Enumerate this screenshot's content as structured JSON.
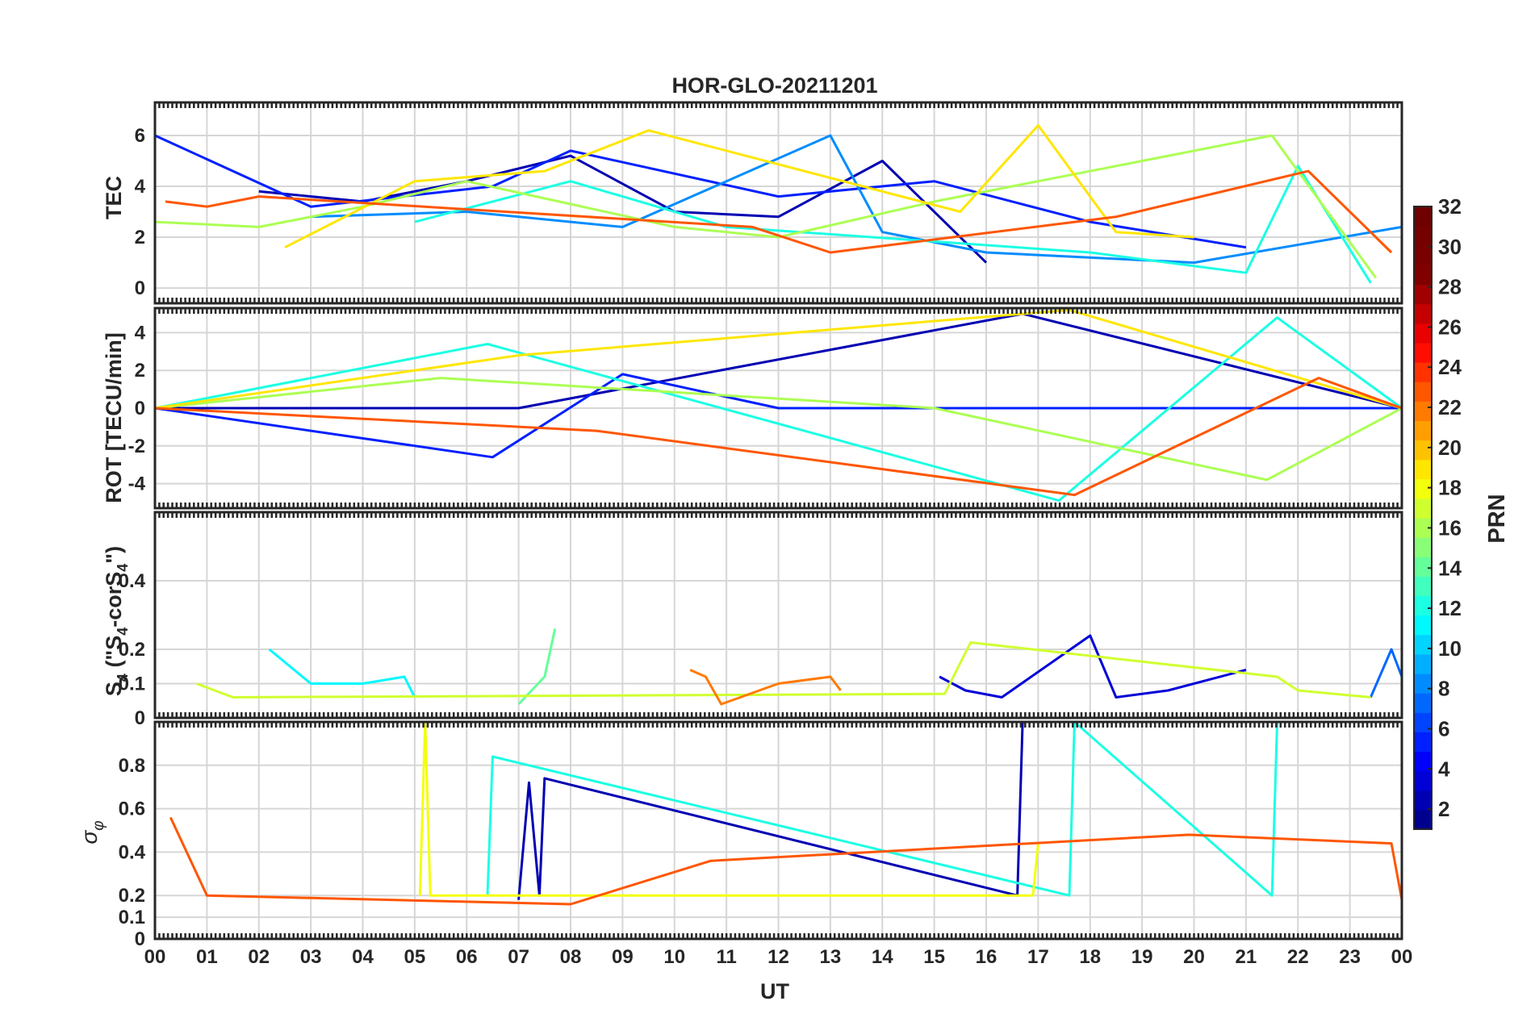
{
  "chart_data": {
    "type": "line",
    "title": "HOR-GLO-20211201",
    "xlabel": "UT",
    "xlim": [
      0,
      24
    ],
    "xticklabels": [
      "00",
      "01",
      "02",
      "03",
      "04",
      "05",
      "06",
      "07",
      "08",
      "09",
      "10",
      "11",
      "12",
      "13",
      "14",
      "15",
      "16",
      "17",
      "18",
      "19",
      "20",
      "21",
      "22",
      "23",
      "00"
    ],
    "colorbar": {
      "label": "PRN",
      "range": [
        1,
        32
      ],
      "ticks": [
        "2",
        "4",
        "6",
        "8",
        "10",
        "12",
        "14",
        "16",
        "18",
        "20",
        "22",
        "24",
        "26",
        "28",
        "30",
        "32"
      ],
      "colors": [
        "#00008f",
        "#0000b3",
        "#0000d7",
        "#0000fb",
        "#0020ff",
        "#0044ff",
        "#0068ff",
        "#008cff",
        "#00b0ff",
        "#00d4ff",
        "#00f8ff",
        "#1cffe3",
        "#40ffbf",
        "#64ff9b",
        "#88ff77",
        "#acff53",
        "#d0ff2f",
        "#f4ff0b",
        "#ffe600",
        "#ffc200",
        "#ff9e00",
        "#ff7a00",
        "#ff5600",
        "#ff3200",
        "#ff0e00",
        "#e90000",
        "#c50000",
        "#a10000",
        "#800000",
        "#7a0000",
        "#740000",
        "#6e0000"
      ]
    },
    "panels": [
      {
        "id": "tec",
        "ylabel": "TEC",
        "ylim": [
          -0.6,
          7.3
        ],
        "yticks": [
          "0",
          "2",
          "4",
          "6"
        ],
        "series": [
          {
            "prn": 2,
            "x": [
              2.0,
              4.0,
              6.0,
              8.0,
              10.0,
              12.0,
              14.0,
              16.0
            ],
            "y": [
              3.8,
              3.4,
              4.2,
              5.2,
              3.0,
              2.8,
              5.0,
              1.0
            ]
          },
          {
            "prn": 5,
            "x": [
              0.0,
              3.0,
              6.5,
              8.0,
              12.0,
              15.0,
              18.0,
              21.0
            ],
            "y": [
              6.0,
              3.2,
              4.0,
              5.4,
              3.6,
              4.2,
              2.6,
              1.6
            ]
          },
          {
            "prn": 8,
            "x": [
              3.0,
              6.0,
              9.0,
              13.0,
              14.0,
              16.0,
              20.0,
              24.0
            ],
            "y": [
              2.8,
              3.0,
              2.4,
              6.0,
              2.2,
              1.4,
              1.0,
              2.4
            ]
          },
          {
            "prn": 12,
            "x": [
              5.0,
              8.0,
              11.0,
              18.0,
              21.0,
              22.0,
              23.4
            ],
            "y": [
              2.6,
              4.2,
              2.4,
              1.4,
              0.6,
              4.8,
              0.2
            ]
          },
          {
            "prn": 16,
            "x": [
              0.0,
              2.0,
              4.0,
              6.0,
              10.0,
              12.0,
              15.0,
              21.5,
              23.5
            ],
            "y": [
              2.6,
              2.4,
              3.2,
              4.2,
              2.4,
              2.0,
              3.4,
              6.0,
              0.4
            ]
          },
          {
            "prn": 19,
            "x": [
              2.5,
              5.0,
              7.5,
              9.5,
              15.5,
              17.0,
              18.5,
              20.0
            ],
            "y": [
              1.6,
              4.2,
              4.6,
              6.2,
              3.0,
              6.4,
              2.2,
              2.0
            ]
          },
          {
            "prn": 23,
            "x": [
              0.2,
              1.0,
              2.0,
              11.5,
              13.0,
              18.5,
              22.2,
              23.8
            ],
            "y": [
              3.4,
              3.2,
              3.6,
              2.4,
              1.4,
              2.8,
              4.6,
              1.4
            ]
          }
        ]
      },
      {
        "id": "rot",
        "ylabel": "ROT [TECU/min]",
        "ylim": [
          -5.3,
          5.3
        ],
        "yticks": [
          "-4",
          "-2",
          "0",
          "2",
          "4"
        ],
        "series": [
          {
            "prn": 2,
            "x": [
              0.0,
              6.0,
              7.0,
              16.7,
              24.0
            ],
            "y": [
              0.0,
              0.0,
              0.0,
              5.0,
              0.0
            ]
          },
          {
            "prn": 5,
            "x": [
              0.0,
              6.5,
              9.0,
              12.0,
              22.0,
              24.0
            ],
            "y": [
              0.0,
              -2.6,
              1.8,
              0.0,
              0.0,
              0.0
            ]
          },
          {
            "prn": 12,
            "x": [
              0.0,
              6.4,
              17.4,
              21.6,
              24.0
            ],
            "y": [
              0.0,
              3.4,
              -4.9,
              4.8,
              0.0
            ]
          },
          {
            "prn": 16,
            "x": [
              0.0,
              5.5,
              15.0,
              21.4,
              24.0
            ],
            "y": [
              0.0,
              1.6,
              0.0,
              -3.8,
              0.0
            ]
          },
          {
            "prn": 19,
            "x": [
              0.0,
              7.0,
              17.6,
              24.0
            ],
            "y": [
              0.0,
              2.8,
              5.2,
              0.0
            ]
          },
          {
            "prn": 23,
            "x": [
              0.0,
              8.5,
              17.7,
              22.4,
              24.0
            ],
            "y": [
              0.0,
              -1.2,
              -4.6,
              1.6,
              0.0
            ]
          }
        ]
      },
      {
        "id": "s4",
        "ylabel": "S4 (\"S4-corS4\")",
        "ylim": [
          0,
          0.6
        ],
        "yticks": [
          "0",
          "0.1",
          "0.2",
          "0.4"
        ],
        "series": [
          {
            "prn": 3,
            "x": [
              15.1,
              15.6,
              16.3,
              18.0,
              18.5,
              19.5,
              21.0
            ],
            "y": [
              0.12,
              0.08,
              0.06,
              0.24,
              0.06,
              0.08,
              0.14
            ]
          },
          {
            "prn": 7,
            "x": [
              23.4,
              23.8,
              24.0
            ],
            "y": [
              0.06,
              0.2,
              0.12
            ]
          },
          {
            "prn": 11,
            "x": [
              2.2,
              3.0,
              4.0,
              4.8,
              5.0
            ],
            "y": [
              0.2,
              0.1,
              0.1,
              0.12,
              0.06
            ]
          },
          {
            "prn": 14,
            "x": [
              7.0,
              7.5,
              7.7
            ],
            "y": [
              0.04,
              0.12,
              0.26
            ]
          },
          {
            "prn": 17,
            "x": [
              0.8,
              1.5,
              15.2,
              15.5,
              15.7,
              21.6,
              22.0,
              23.4
            ],
            "y": [
              0.1,
              0.06,
              0.07,
              0.16,
              0.22,
              0.12,
              0.08,
              0.06
            ]
          },
          {
            "prn": 22,
            "x": [
              10.3,
              10.6,
              10.9,
              12.0,
              13.0,
              13.2
            ],
            "y": [
              0.14,
              0.12,
              0.04,
              0.1,
              0.12,
              0.08
            ]
          }
        ]
      },
      {
        "id": "sigma",
        "ylabel": "σφ",
        "ylim": [
          0,
          1.0
        ],
        "yticks": [
          "0",
          "0.1",
          "0.2",
          "0.4",
          "0.6",
          "0.8"
        ],
        "series": [
          {
            "prn": 2,
            "x": [
              7.0,
              7.2,
              7.4,
              7.5,
              16.6,
              16.7
            ],
            "y": [
              0.18,
              0.72,
              0.2,
              0.74,
              0.2,
              1.0
            ]
          },
          {
            "prn": 12,
            "x": [
              6.4,
              6.5,
              17.6,
              17.7,
              21.5,
              21.6
            ],
            "y": [
              0.2,
              0.84,
              0.2,
              1.0,
              0.2,
              1.0
            ]
          },
          {
            "prn": 18,
            "x": [
              5.1,
              5.2,
              5.3,
              16.9,
              17.0
            ],
            "y": [
              0.2,
              1.0,
              0.2,
              0.2,
              0.44
            ]
          },
          {
            "prn": 23,
            "x": [
              0.3,
              1.0,
              8.0,
              10.7,
              19.9,
              23.8,
              24.0
            ],
            "y": [
              0.56,
              0.2,
              0.16,
              0.36,
              0.48,
              0.44,
              0.18
            ]
          }
        ]
      }
    ]
  }
}
